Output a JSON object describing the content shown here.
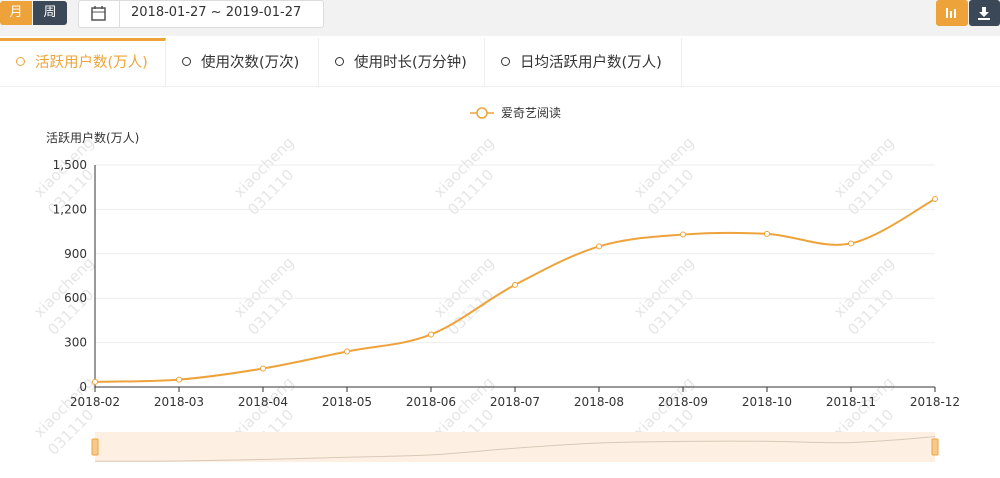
{
  "toolbar": {
    "period_buttons": [
      "月",
      "周"
    ],
    "date_range": "2018-01-27 ~ 2019-01-27"
  },
  "tabs": [
    "活跃用户数(万人)",
    "使用次数(万次)",
    "使用时长(万分钟)",
    "日均活跃用户数(万人)"
  ],
  "watermark": [
    "xiaocheng",
    "031110"
  ],
  "chart_data": {
    "type": "line",
    "y_label": "活跃用户数(万人)",
    "x": [
      "2018-02",
      "2018-03",
      "2018-04",
      "2018-05",
      "2018-06",
      "2018-07",
      "2018-08",
      "2018-09",
      "2018-10",
      "2018-11",
      "2018-12"
    ],
    "series": [
      {
        "name": "爱奇艺阅读",
        "color": "#eea33a",
        "values": [
          35,
          50,
          125,
          240,
          355,
          690,
          950,
          1030,
          1035,
          970,
          1270
        ]
      }
    ],
    "ylim": [
      0,
      1500
    ],
    "yticks": [
      0,
      300,
      600,
      900,
      {
        "value": 1200,
        "label": "1,200"
      },
      {
        "value": 1500,
        "label": "1,500"
      }
    ],
    "grid": true,
    "legend": "top"
  }
}
